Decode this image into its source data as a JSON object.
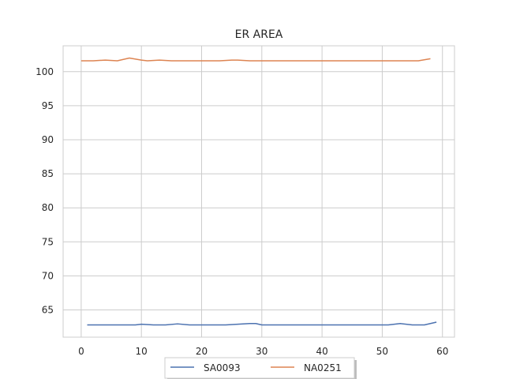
{
  "chart_data": {
    "type": "line",
    "title": "ER AREA",
    "xlabel": "",
    "ylabel": "",
    "xlim": [
      -3,
      62
    ],
    "ylim": [
      61,
      103.8
    ],
    "xticks": [
      0,
      10,
      20,
      30,
      40,
      50,
      60
    ],
    "yticks": [
      65,
      70,
      75,
      80,
      85,
      90,
      95,
      100
    ],
    "grid": true,
    "legend_position": "bottom-center",
    "series": [
      {
        "name": "SA0093",
        "color": "#4c72b0",
        "x": [
          1,
          3,
          5,
          7,
          9,
          10,
          12,
          14,
          16,
          18,
          20,
          22,
          24,
          26,
          28,
          29,
          30,
          32,
          34,
          36,
          38,
          40,
          42,
          44,
          46,
          48,
          50,
          51,
          53,
          55,
          57,
          59
        ],
        "y": [
          62.8,
          62.8,
          62.8,
          62.8,
          62.8,
          62.9,
          62.8,
          62.8,
          62.95,
          62.8,
          62.8,
          62.8,
          62.8,
          62.9,
          63.0,
          63.0,
          62.8,
          62.8,
          62.8,
          62.8,
          62.8,
          62.8,
          62.8,
          62.8,
          62.8,
          62.8,
          62.8,
          62.8,
          63.0,
          62.8,
          62.8,
          63.2
        ]
      },
      {
        "name": "NA0251",
        "color": "#dd8452",
        "x": [
          0,
          2,
          4,
          6,
          8,
          10,
          11,
          13,
          15,
          17,
          19,
          21,
          23,
          25,
          26,
          28,
          30,
          32,
          34,
          36,
          38,
          40,
          42,
          44,
          46,
          48,
          50,
          52,
          54,
          56,
          58
        ],
        "y": [
          101.6,
          101.6,
          101.7,
          101.6,
          102.0,
          101.7,
          101.6,
          101.7,
          101.6,
          101.6,
          101.6,
          101.6,
          101.6,
          101.7,
          101.7,
          101.6,
          101.6,
          101.6,
          101.6,
          101.6,
          101.6,
          101.6,
          101.6,
          101.6,
          101.6,
          101.6,
          101.6,
          101.6,
          101.6,
          101.6,
          101.9
        ]
      }
    ]
  }
}
